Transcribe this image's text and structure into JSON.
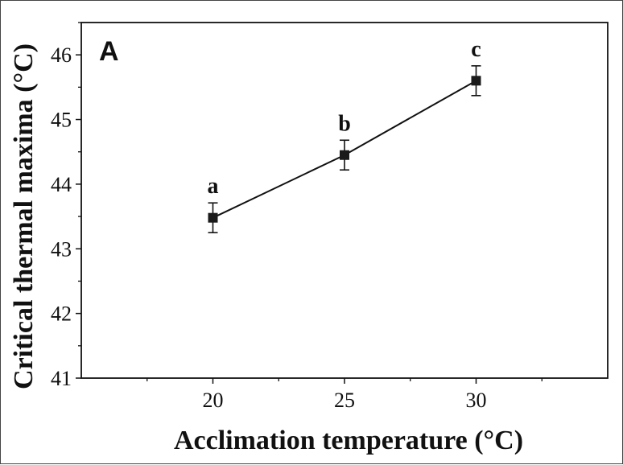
{
  "chart_data": {
    "type": "line",
    "panel_label": "A",
    "xlabel": "Acclimation temperature (°C)",
    "ylabel": "Critical thermal maxima (°C)",
    "xlim": [
      15,
      35
    ],
    "ylim": [
      41,
      46.5
    ],
    "xticks": [
      "20",
      "25",
      "30"
    ],
    "yticks": [
      "41",
      "42",
      "43",
      "44",
      "45",
      "46"
    ],
    "x": [
      20,
      25,
      30
    ],
    "series": [
      {
        "values": [
          43.48,
          44.45,
          45.6
        ],
        "error": [
          0.23,
          0.23,
          0.23
        ],
        "labels": [
          "a",
          "b",
          "c"
        ],
        "marker": "square",
        "color": "#111111"
      }
    ],
    "grid": false
  }
}
